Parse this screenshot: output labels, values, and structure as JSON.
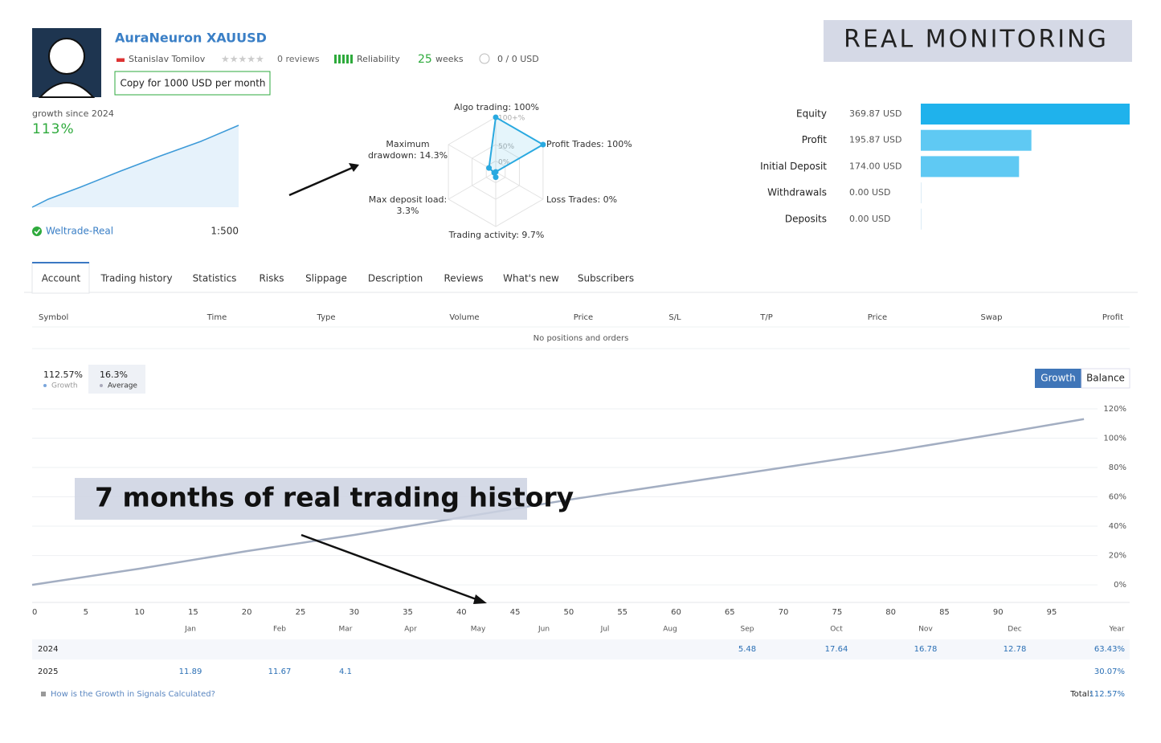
{
  "header": {
    "name": "AuraNeuron XAUUSD",
    "author": "Stanislav Tomilov",
    "reviews": "0 reviews",
    "reliability": "Reliability",
    "weeks_value": "25",
    "weeks_label": "weeks",
    "funds": "0 / 0 USD",
    "copy_button": "Copy for 1000 USD per month",
    "banner": "REAL MONITORING"
  },
  "summary": {
    "growth_label": "growth since 2024",
    "growth_value": "113%",
    "broker": "Weltrade-Real",
    "leverage": "1:500"
  },
  "tabs": [
    "Account",
    "Trading history",
    "Statistics",
    "Risks",
    "Slippage",
    "Description",
    "Reviews",
    "What's new",
    "Subscribers"
  ],
  "positions": {
    "columns": [
      "Symbol",
      "Time",
      "Type",
      "Volume",
      "Price",
      "S/L",
      "T/P",
      "Price",
      "Swap",
      "Profit"
    ],
    "empty": "No positions and orders"
  },
  "stats": [
    {
      "value": "112.57%",
      "label": "Growth"
    },
    {
      "value": "16.3%",
      "label": "Average"
    }
  ],
  "buttons": [
    "Growth",
    "Balance"
  ],
  "annotation": "7 months of real trading history",
  "monthly": {
    "months": [
      "Jan",
      "Feb",
      "Mar",
      "Apr",
      "May",
      "Jun",
      "Jul",
      "Aug",
      "Sep",
      "Oct",
      "Nov",
      "Dec",
      "Year"
    ],
    "rows": [
      {
        "year": "2024",
        "cells": [
          null,
          null,
          null,
          null,
          null,
          null,
          null,
          null,
          "5.48",
          "17.64",
          "16.78",
          "12.78",
          "63.43%"
        ]
      },
      {
        "year": "2025",
        "cells": [
          "11.89",
          "11.67",
          "4.1",
          null,
          null,
          null,
          null,
          null,
          null,
          null,
          null,
          null,
          "30.07%"
        ]
      }
    ]
  },
  "footer": {
    "help": "How is the Growth in Signals Calculated?",
    "total_label": "Total:",
    "total_value": "112.57%"
  },
  "chart_data": [
    {
      "type": "radar",
      "categories": [
        "Algo trading: 100%",
        "Profit Trades: 100%",
        "Loss Trades: 0%",
        "Trading activity: 9.7%",
        "Max deposit load: 3.3%",
        "Maximum drawdown: 14.3%"
      ],
      "values": [
        100,
        100,
        0,
        9.7,
        3.3,
        14.3
      ],
      "color": "#29a9e0",
      "ylim": [
        0,
        100
      ],
      "rticks": [
        {
          "value": 100,
          "label": "100+%"
        },
        {
          "value": 50,
          "label": "50%"
        },
        {
          "value": 0,
          "label": "0%"
        }
      ]
    },
    {
      "type": "hbar",
      "categories": [
        "Equity",
        "Profit",
        "Initial Deposit",
        "Withdrawals",
        "Deposits"
      ],
      "values": [
        369.87,
        195.87,
        174,
        0,
        0
      ],
      "value_labels": [
        "369.87 USD",
        "195.87 USD",
        "174.00 USD",
        "0.00 USD",
        "0.00 USD"
      ],
      "colors": [
        "#1fb2ec",
        "#5fc9f3",
        "#5fc9f3",
        "#5fc9f3",
        "#5fc9f3"
      ],
      "xlim": [
        0,
        369.87
      ]
    },
    {
      "type": "line",
      "x": [
        0,
        10,
        20,
        30,
        40,
        50,
        60,
        70,
        80,
        90,
        98
      ],
      "series": [
        {
          "name": "Growth",
          "color": "#a3aec2",
          "values": [
            0,
            11,
            23,
            34,
            46,
            58,
            69,
            80,
            91,
            103,
            113
          ]
        }
      ],
      "xlim": [
        0,
        100
      ],
      "ylim": [
        -12,
        120
      ],
      "xticks": [
        0,
        5,
        10,
        15,
        20,
        25,
        30,
        35,
        40,
        45,
        50,
        55,
        60,
        65,
        70,
        75,
        80,
        85,
        90,
        95
      ],
      "yticks": [
        {
          "value": 0,
          "label": "0%"
        },
        {
          "value": 20,
          "label": "20%"
        },
        {
          "value": 40,
          "label": "40%"
        },
        {
          "value": 60,
          "label": "60%"
        },
        {
          "value": 80,
          "label": "80%"
        },
        {
          "value": 100,
          "label": "100%"
        },
        {
          "value": 120,
          "label": "120%"
        }
      ],
      "grid": true
    }
  ]
}
